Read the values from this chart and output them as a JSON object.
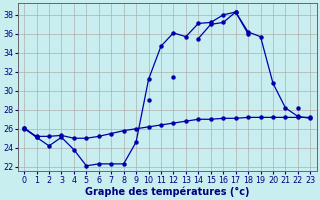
{
  "title": "Graphe des températures (°c)",
  "background_color": "#c8eef0",
  "grid_color": "#b0b0b0",
  "line_color": "#0000aa",
  "xlim": [
    -0.5,
    23.5
  ],
  "ylim": [
    21.5,
    39.2
  ],
  "xticks": [
    0,
    1,
    2,
    3,
    4,
    5,
    6,
    7,
    8,
    9,
    10,
    11,
    12,
    13,
    14,
    15,
    16,
    17,
    18,
    19,
    20,
    21,
    22,
    23
  ],
  "yticks": [
    22,
    24,
    26,
    28,
    30,
    32,
    34,
    36,
    38
  ],
  "curve_jagged": [
    26.1,
    25.1,
    24.2,
    25.1,
    23.8,
    22.1,
    22.3,
    22.3,
    22.3,
    24.6,
    31.2,
    34.7,
    36.1,
    35.7,
    37.1,
    37.2,
    38.0,
    38.3,
    36.2,
    35.7,
    30.8,
    28.2,
    27.3,
    27.1
  ],
  "curve_upper": [
    26.1,
    25.1,
    null,
    null,
    null,
    null,
    null,
    null,
    null,
    null,
    29.0,
    null,
    31.5,
    null,
    35.5,
    37.0,
    37.2,
    38.3,
    36.0,
    null,
    null,
    null,
    28.2,
    null
  ],
  "curve_flat": [
    26.0,
    25.2,
    25.2,
    25.3,
    25.0,
    25.0,
    25.2,
    25.5,
    25.8,
    26.0,
    26.2,
    26.4,
    26.6,
    26.8,
    27.0,
    27.0,
    27.1,
    27.1,
    27.2,
    27.2,
    27.2,
    27.2,
    27.2,
    27.2
  ]
}
